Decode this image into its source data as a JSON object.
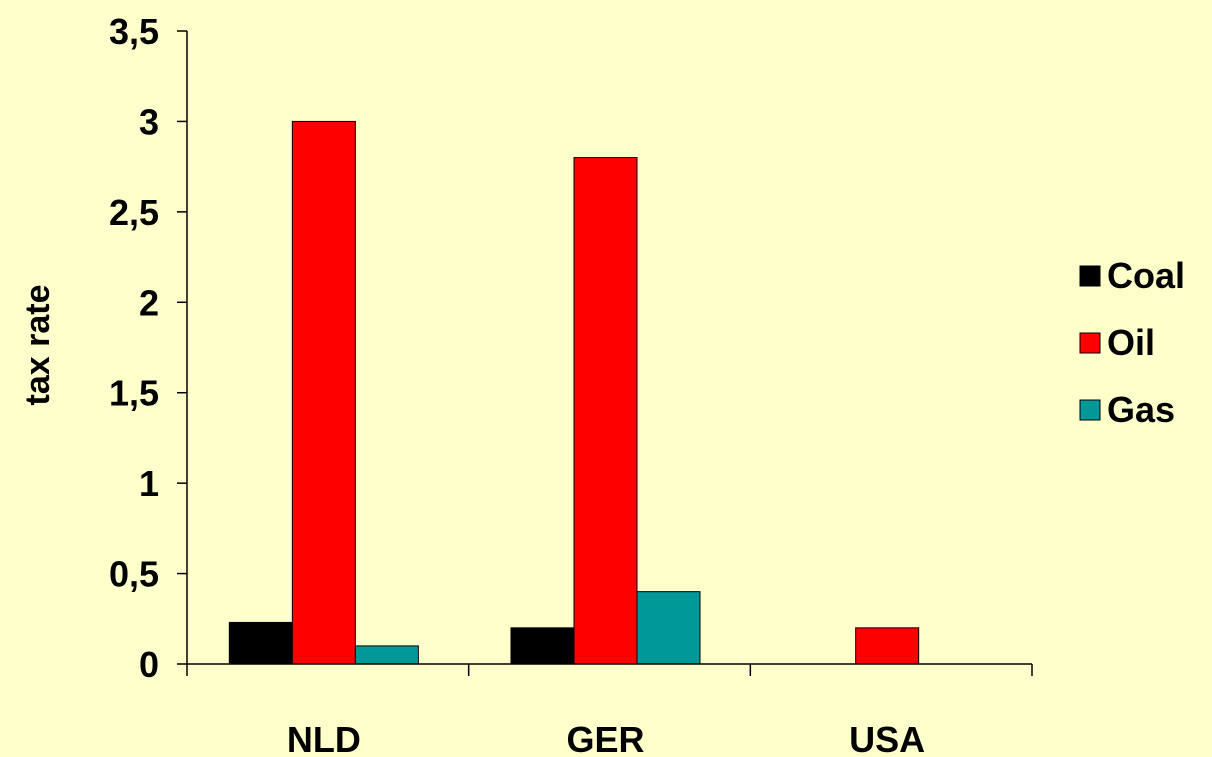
{
  "chart_data": {
    "type": "bar",
    "title": "",
    "xlabel": "",
    "ylabel": "tax rate",
    "categories": [
      "NLD",
      "GER",
      "USA"
    ],
    "series": [
      {
        "name": "Coal",
        "color": "#000000",
        "values": [
          0.23,
          0.2,
          0
        ]
      },
      {
        "name": "Oil",
        "color": "#FF0000",
        "values": [
          3.0,
          2.8,
          0.2
        ]
      },
      {
        "name": "Gas",
        "color": "#009999",
        "values": [
          0.1,
          0.4,
          0
        ]
      }
    ],
    "ylim": [
      0,
      3.5
    ],
    "yticks": [
      0,
      0.5,
      1,
      1.5,
      2,
      2.5,
      3,
      3.5
    ],
    "ytick_labels": [
      "0",
      "0,5",
      "1",
      "1,5",
      "2",
      "2,5",
      "3",
      "3,5"
    ],
    "grid": false,
    "legend_position": "right",
    "background_color": "#FFFFCC"
  }
}
